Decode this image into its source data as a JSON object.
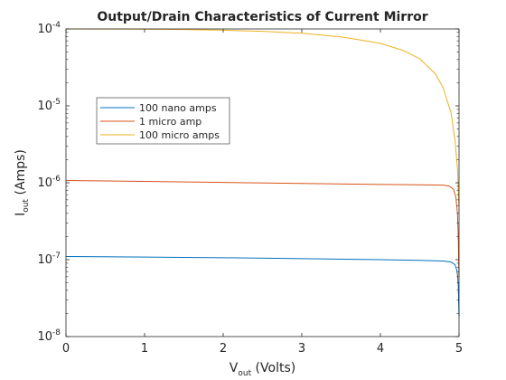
{
  "chart_data": {
    "type": "line",
    "title": "Output/Drain Characteristics of Current Mirror",
    "xlabel": {
      "main": "V",
      "sub": "out",
      "rest": " (Volts)"
    },
    "ylabel": {
      "main": "I",
      "sub": "out",
      "rest": " (Amps)"
    },
    "xlim": [
      0,
      5
    ],
    "ylim": [
      1e-08,
      0.0001
    ],
    "yscale": "log",
    "grid": false,
    "legend_position": "upper-left",
    "x_ticks": [
      {
        "value": 0,
        "label": "0"
      },
      {
        "value": 1,
        "label": "1"
      },
      {
        "value": 2,
        "label": "2"
      },
      {
        "value": 3,
        "label": "3"
      },
      {
        "value": 4,
        "label": "4"
      },
      {
        "value": 5,
        "label": "5"
      }
    ],
    "y_ticks": [
      {
        "value": 1e-08,
        "base": "10",
        "exp": "-8"
      },
      {
        "value": 1e-07,
        "base": "10",
        "exp": "-7"
      },
      {
        "value": 1e-06,
        "base": "10",
        "exp": "-6"
      },
      {
        "value": 1e-05,
        "base": "10",
        "exp": "-5"
      },
      {
        "value": 0.0001,
        "base": "10",
        "exp": "-4"
      }
    ],
    "series": [
      {
        "name": "100 nano amps",
        "color": "#0072bd",
        "points": [
          [
            0,
            1.1e-07
          ],
          [
            1,
            1.08e-07
          ],
          [
            2,
            1.06e-07
          ],
          [
            3,
            1.03e-07
          ],
          [
            4,
            1e-07
          ],
          [
            4.5,
            9.8e-08
          ],
          [
            4.8,
            9.6e-08
          ],
          [
            4.9,
            9.3e-08
          ],
          [
            4.95,
            8.6e-08
          ],
          [
            4.97,
            7.4e-08
          ],
          [
            4.98,
            6.4e-08
          ],
          [
            4.99,
            4.8e-08
          ],
          [
            5,
            1.8e-08
          ]
        ]
      },
      {
        "name": "1 micro amp",
        "color": "#d95319",
        "points": [
          [
            0,
            1.07e-06
          ],
          [
            1,
            1.04e-06
          ],
          [
            2,
            1.01e-06
          ],
          [
            3,
            9.8e-07
          ],
          [
            4,
            9.5e-07
          ],
          [
            4.5,
            9.4e-07
          ],
          [
            4.8,
            9.3e-07
          ],
          [
            4.88,
            9e-07
          ],
          [
            4.93,
            8.2e-07
          ],
          [
            4.96,
            6.5e-07
          ],
          [
            4.98,
            4e-07
          ],
          [
            4.99,
            2e-07
          ],
          [
            5,
            6e-08
          ]
        ]
      },
      {
        "name": "100 micro amps",
        "color": "#edb120",
        "points": [
          [
            0,
            0.0001
          ],
          [
            0.5,
            9.98e-05
          ],
          [
            1,
            9.93e-05
          ],
          [
            1.5,
            9.82e-05
          ],
          [
            2,
            9.62e-05
          ],
          [
            2.5,
            9.32e-05
          ],
          [
            3,
            8.8e-05
          ],
          [
            3.5,
            7.9e-05
          ],
          [
            4,
            6.5e-05
          ],
          [
            4.3,
            5.2e-05
          ],
          [
            4.5,
            4.1e-05
          ],
          [
            4.7,
            2.6e-05
          ],
          [
            4.8,
            1.7e-05
          ],
          [
            4.9,
            8e-06
          ],
          [
            4.95,
            3.5e-06
          ],
          [
            4.98,
            1.5e-06
          ],
          [
            5,
            5e-07
          ]
        ]
      }
    ]
  }
}
